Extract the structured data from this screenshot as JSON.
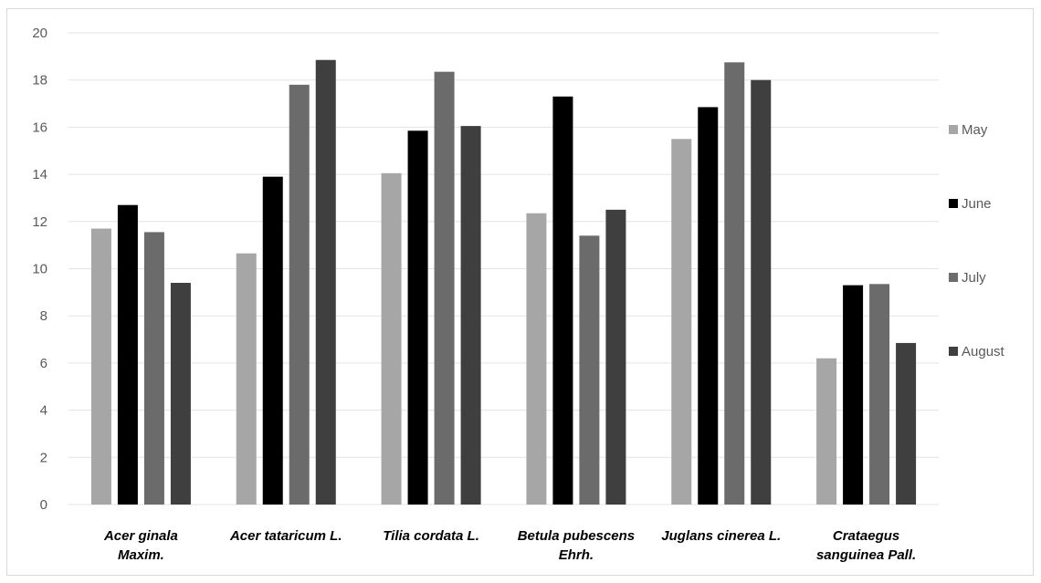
{
  "chart_data": {
    "type": "bar",
    "title": "",
    "xlabel": "",
    "ylabel": "",
    "ylim": [
      0,
      20
    ],
    "yticks": [
      0,
      2,
      4,
      6,
      8,
      10,
      12,
      14,
      16,
      18,
      20
    ],
    "grid": true,
    "legend_position": "right",
    "categories": [
      [
        "Acer ginala",
        "Maxim."
      ],
      [
        "Acer tataricum L."
      ],
      [
        "Tilia cordata L."
      ],
      [
        "Betula pubescens",
        "Ehrh."
      ],
      [
        "Juglans cinerea L."
      ],
      [
        "Crataegus",
        "sanguinea Pall."
      ]
    ],
    "series": [
      {
        "name": "May",
        "color": "#a6a6a6",
        "values": [
          11.7,
          10.65,
          14.05,
          12.35,
          15.5,
          6.2
        ]
      },
      {
        "name": "June",
        "color": "#000000",
        "values": [
          12.7,
          13.9,
          15.85,
          17.3,
          16.85,
          9.3
        ]
      },
      {
        "name": "July",
        "color": "#6b6b6b",
        "values": [
          11.55,
          17.8,
          18.35,
          11.4,
          18.75,
          9.35
        ]
      },
      {
        "name": "August",
        "color": "#3f3f3f",
        "values": [
          9.4,
          18.85,
          16.05,
          12.5,
          18.0,
          6.85
        ]
      }
    ]
  }
}
